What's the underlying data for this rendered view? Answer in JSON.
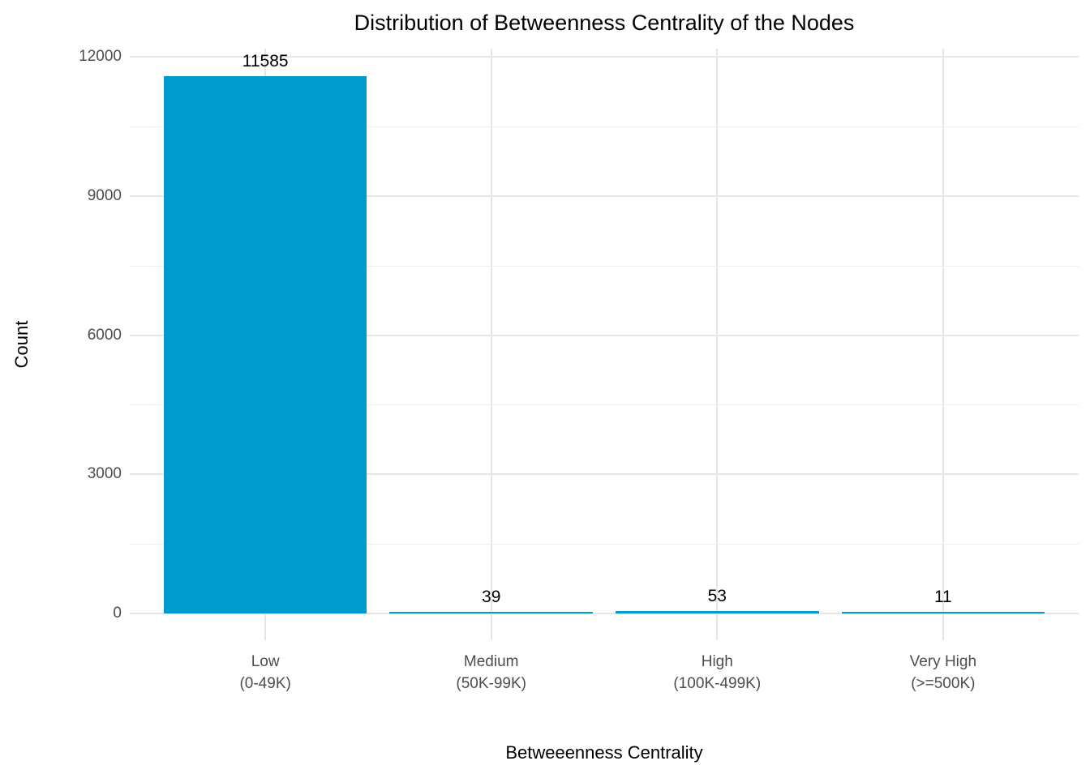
{
  "chart_data": {
    "type": "bar",
    "title": "Distribution of Betweenness Centrality of the Nodes",
    "xlabel": "Betweeenness Centrality",
    "ylabel": "Count",
    "categories": [
      "Low\n(0-49K)",
      "Medium\n(50K-99K)",
      "High\n(100K-499K)",
      "Very High\n(>=500K)"
    ],
    "values": [
      11585,
      39,
      53,
      11
    ],
    "bar_labels": [
      "11585",
      "39",
      "53",
      "11"
    ],
    "ylim": [
      0,
      12000
    ],
    "yticks": [
      0,
      3000,
      6000,
      9000,
      12000
    ],
    "ytick_labels": [
      "0",
      "3000",
      "6000",
      "9000",
      "12000"
    ],
    "grid": true,
    "legend_position": "none",
    "colors": {
      "bar": "#009ACD",
      "tick_label": "#4d4d4d",
      "axis_text": "#000000",
      "grid_major": "#e6e6e6",
      "grid_minor": "#efefef",
      "background": "#ffffff"
    }
  }
}
